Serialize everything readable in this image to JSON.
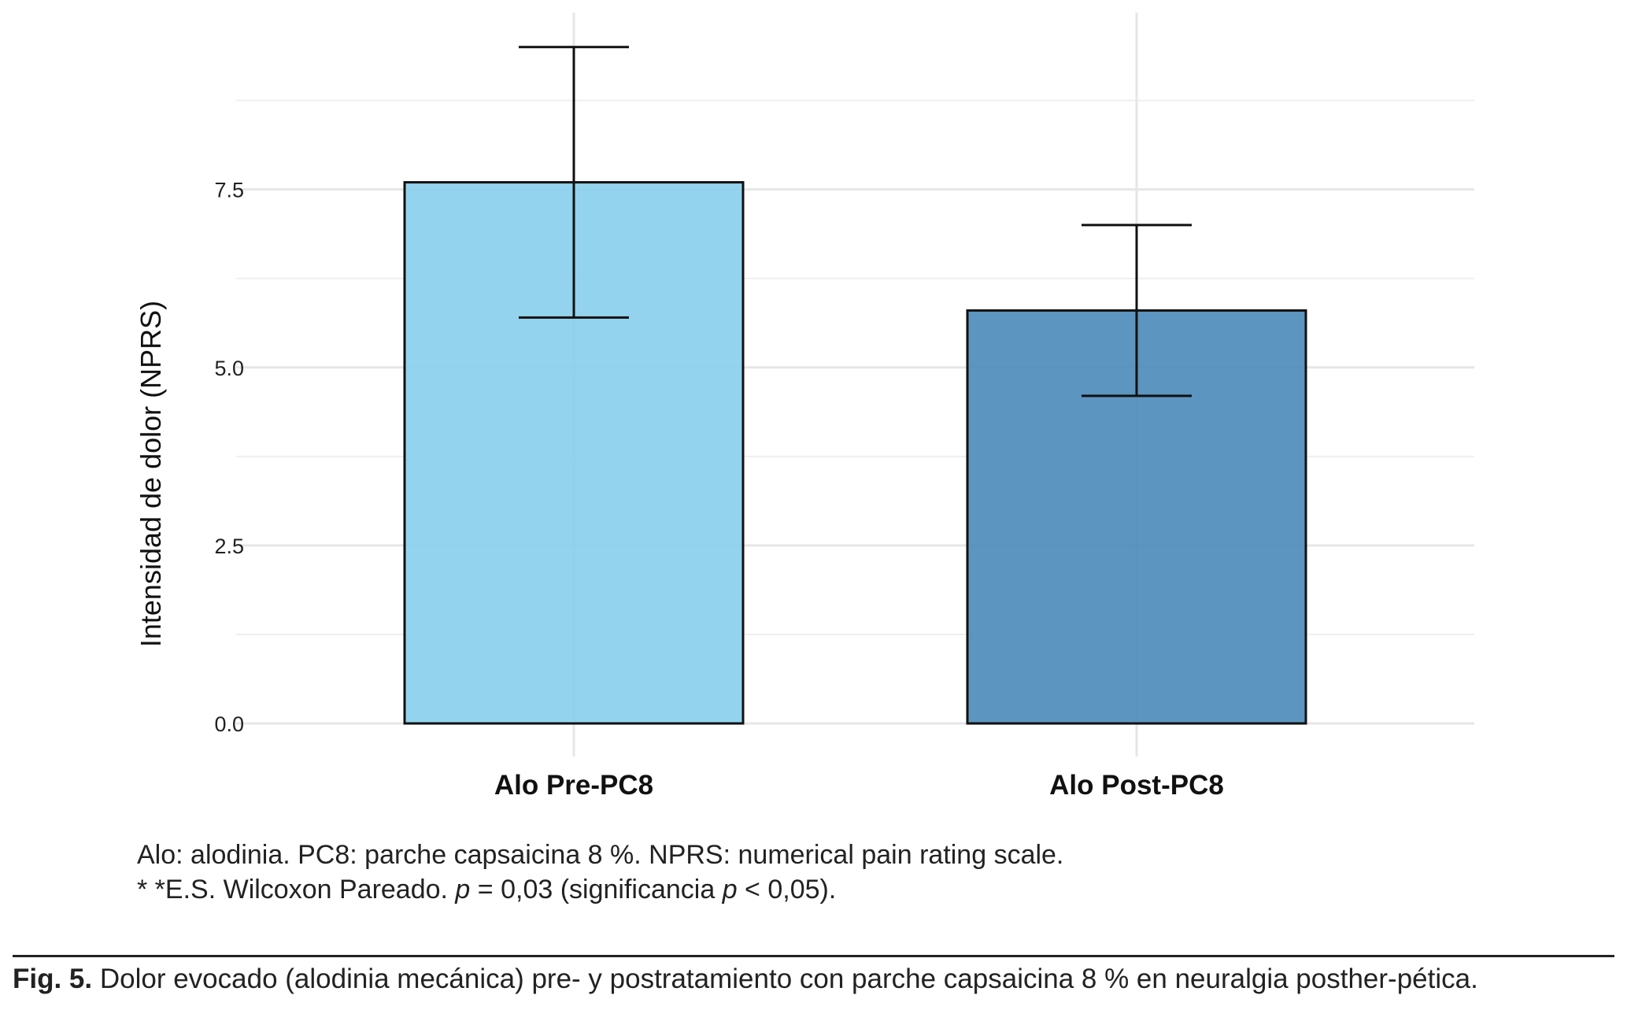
{
  "chart_data": {
    "type": "bar",
    "categories": [
      "Alo Pre-PC8",
      "Alo Post-PC8"
    ],
    "values": [
      7.6,
      5.8
    ],
    "error_bars": [
      {
        "low": 5.7,
        "high": 9.5
      },
      {
        "low": 4.6,
        "high": 7.0
      }
    ],
    "colors": [
      "#87CEEB",
      "#4A8AB8"
    ],
    "ylabel": "Intensidad de dolor (NPRS)",
    "xlabel": "",
    "ylim": [
      0,
      9.9
    ],
    "yticks": [
      0.0,
      2.5,
      5.0,
      7.5
    ],
    "ytick_labels": [
      "0.0",
      "2.5",
      "5.0",
      "7.5"
    ],
    "grid": true,
    "legend": "none"
  },
  "notes": {
    "line1": "Alo: alodinia. PC8: parche capsaicina 8 %. NPRS: numerical pain rating scale.",
    "line2_prefix": "* *E.S. Wilcoxon Pareado. ",
    "p1": "p",
    "line2_mid": " = 0,03 (significancia ",
    "p2": "p",
    "line2_suffix": " < 0,05)."
  },
  "figure_caption": {
    "label": "Fig. 5.",
    "text": " Dolor evocado (alodinia mecánica)  pre- y postratamiento con parche capsaicina 8 % en neuralgia posther-pética."
  }
}
